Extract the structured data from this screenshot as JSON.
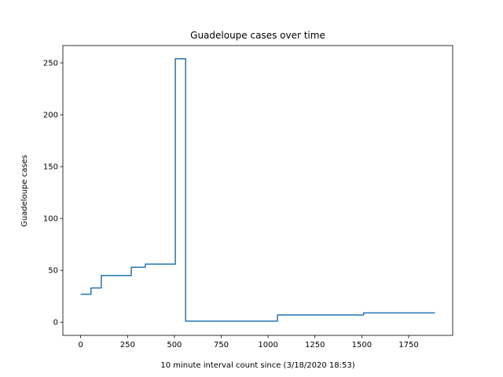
{
  "chart_data": {
    "type": "line",
    "title": "Guadeloupe cases over time",
    "xlabel": "10 minute interval count since (3/18/2020 18:53)",
    "ylabel": "Guadeloupe cases",
    "xlim": [
      -95,
      1985
    ],
    "ylim": [
      -12.7,
      266.7
    ],
    "x_ticks": [
      0,
      250,
      500,
      750,
      1000,
      1250,
      1500,
      1750
    ],
    "y_ticks": [
      0,
      50,
      100,
      150,
      200,
      250
    ],
    "grid": false,
    "series": [
      {
        "color": "#1f77b4",
        "points": [
          [
            0,
            27
          ],
          [
            55,
            27
          ],
          [
            55,
            33
          ],
          [
            110,
            33
          ],
          [
            110,
            45
          ],
          [
            270,
            45
          ],
          [
            270,
            53
          ],
          [
            345,
            53
          ],
          [
            345,
            56
          ],
          [
            505,
            56
          ],
          [
            505,
            254
          ],
          [
            560,
            254
          ],
          [
            560,
            1
          ],
          [
            1050,
            1
          ],
          [
            1050,
            7
          ],
          [
            1510,
            7
          ],
          [
            1510,
            9
          ],
          [
            1890,
            9
          ]
        ]
      }
    ]
  }
}
